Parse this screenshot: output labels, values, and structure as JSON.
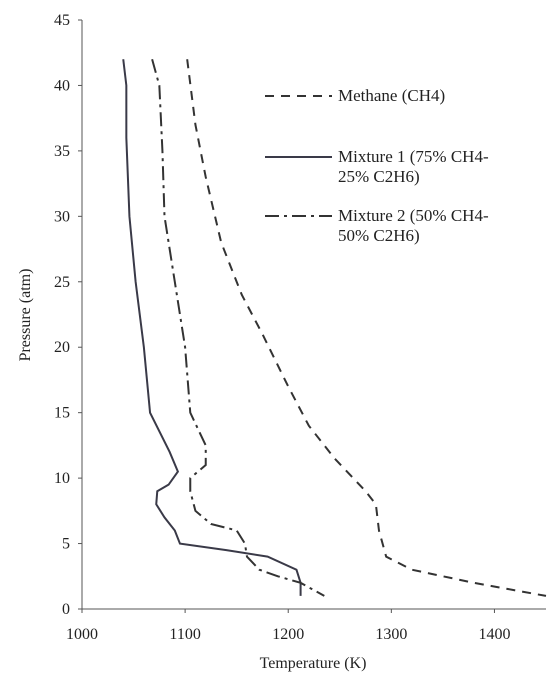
{
  "chart_data": {
    "type": "line",
    "xlabel": "Temperature (K)",
    "ylabel": "Pressure (atm)",
    "xlim": [
      1000,
      1450
    ],
    "xticks": [
      1000,
      1100,
      1200,
      1300,
      1400
    ],
    "ylim": [
      0,
      45
    ],
    "yticks": [
      0,
      5,
      10,
      15,
      20,
      25,
      30,
      35,
      40,
      45
    ],
    "grid": false,
    "legend": "upper right",
    "series": [
      {
        "name": "Methane (CH4)",
        "color": "#333333",
        "line_style": "dashed",
        "x": [
          1102,
          1110,
          1120,
          1135,
          1155,
          1175,
          1200,
          1220,
          1245,
          1275,
          1285,
          1288,
          1295,
          1320,
          1380,
          1450
        ],
        "values": [
          42,
          37,
          33,
          28,
          24,
          21,
          17,
          14,
          11.5,
          9,
          8,
          6,
          4,
          3,
          2,
          1
        ]
      },
      {
        "name": "Mixture 1 (75% CH4-25% C2H6)",
        "color": "#3a3a48",
        "line_style": "solid",
        "x": [
          1040,
          1043,
          1043,
          1046,
          1052,
          1060,
          1066,
          1085,
          1093,
          1084,
          1073,
          1072,
          1080,
          1090,
          1095,
          1140,
          1180,
          1208,
          1212,
          1212
        ],
        "values": [
          42,
          40,
          36,
          30,
          25,
          20,
          15,
          12,
          10.5,
          9.5,
          9,
          8,
          7,
          6,
          5,
          4.5,
          4,
          3,
          2,
          1
        ]
      },
      {
        "name": "Mixture 2 (50% CH4-50% C2H6)",
        "color": "#333333",
        "line_style": "dashdot",
        "x": [
          1068,
          1075,
          1078,
          1080,
          1090,
          1100,
          1105,
          1120,
          1120,
          1105,
          1105,
          1110,
          1125,
          1150,
          1158,
          1160,
          1172,
          1190,
          1212,
          1235
        ],
        "values": [
          42,
          40,
          35,
          30,
          25,
          20,
          15,
          12.5,
          11,
          10,
          9,
          7.5,
          6.5,
          6,
          5,
          4,
          3,
          2.5,
          2,
          1
        ]
      }
    ]
  }
}
